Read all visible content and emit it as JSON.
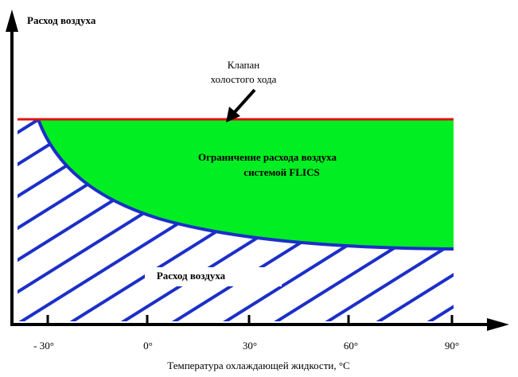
{
  "y_axis_label": "Расход воздуха",
  "x_axis_label": "Температура охлаждающей жидкости, °С",
  "x_ticks": [
    "- 30°",
    "0°",
    "30°",
    "60°",
    "90°"
  ],
  "annotations": {
    "valve": [
      "Клапан",
      "холостого хода"
    ],
    "green_region": [
      "Ограничение расхода воздуха",
      "системой FLICS"
    ],
    "hatched_region": "Расход воздуха"
  }
}
